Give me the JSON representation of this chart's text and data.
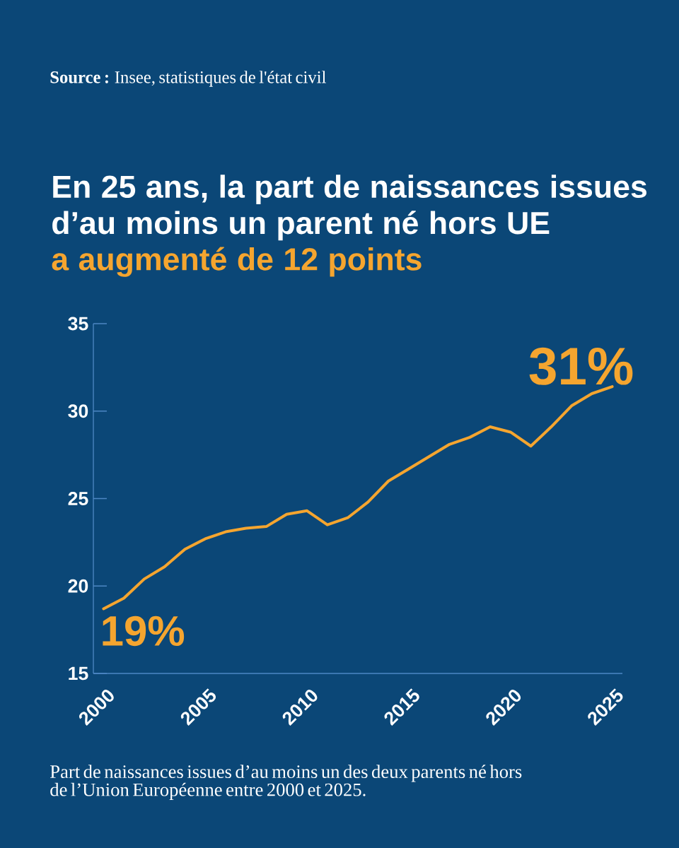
{
  "chart_data": {
    "type": "line",
    "title": "En 25 ans, la part de naissances issues d’au moins un parent né hors UE",
    "subtitle": "a augmenté de 12 points",
    "x": [
      2000,
      2001,
      2002,
      2003,
      2004,
      2005,
      2006,
      2007,
      2008,
      2009,
      2010,
      2011,
      2012,
      2013,
      2014,
      2015,
      2016,
      2017,
      2018,
      2019,
      2020,
      2021,
      2022,
      2023,
      2024,
      2025
    ],
    "values": [
      18.7,
      19.3,
      20.4,
      21.1,
      22.1,
      22.7,
      23.1,
      23.3,
      23.4,
      24.1,
      24.3,
      23.5,
      23.9,
      24.8,
      26.0,
      26.7,
      27.4,
      28.1,
      28.5,
      29.1,
      28.8,
      28.0,
      29.1,
      30.3,
      31.0,
      31.4
    ],
    "color": "#f5a52f",
    "line_style": "solid",
    "xlim": [
      1999.5,
      2025.5
    ],
    "xticks": [
      2000,
      2005,
      2010,
      2015,
      2020,
      2025
    ],
    "ylim": [
      15,
      35
    ],
    "yticks": [
      15,
      20,
      25,
      30,
      35
    ],
    "annotations": [
      {
        "text": "19%",
        "x": 2000,
        "y": 18.7
      },
      {
        "text": "31%",
        "x": 2025,
        "y": 31.4
      },
      "**Source :** Insee, statistiques de l'état civil",
      "Part de naissances issues d’au moins un des deux parents né hors de l’Union Européenne entre 2000 et 2025."
    ]
  }
}
